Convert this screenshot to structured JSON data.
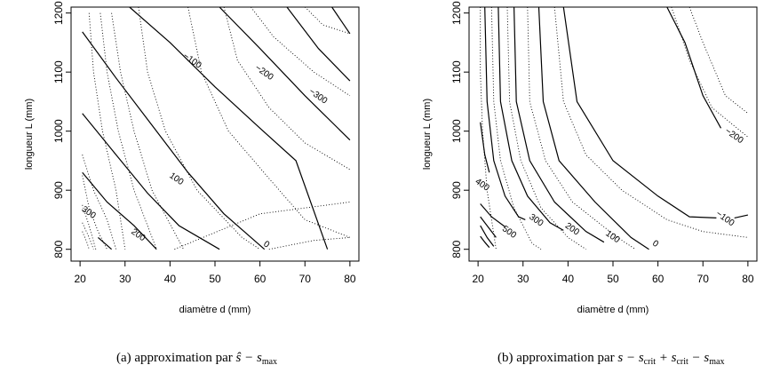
{
  "chart_data": [
    {
      "type": "contour",
      "caption": {
        "prefix": "(a)  approximation par ",
        "formula": "ŝ − s",
        "formula_sub": "max"
      },
      "xlabel": "diamètre d (mm)",
      "ylabel": "longueur L (mm)",
      "xlim": [
        18,
        82
      ],
      "ylim": [
        780,
        1210
      ],
      "x_ticks": [
        20,
        30,
        40,
        50,
        60,
        70,
        80
      ],
      "y_ticks": [
        800,
        900,
        1000,
        1100,
        1200
      ],
      "solid_lines": [
        {
          "points": [
            [
              20.5,
              1168
            ],
            [
              28,
              1090
            ],
            [
              36,
              1010
            ],
            [
              44,
              930
            ],
            [
              52,
              860
            ],
            [
              61,
              800
            ]
          ],
          "label": "0",
          "label_at": [
            61.5,
            809
          ]
        },
        {
          "points": [
            [
              20.5,
              1030
            ],
            [
              28,
              960
            ],
            [
              35,
              895
            ],
            [
              42,
              840
            ],
            [
              51,
              800
            ]
          ],
          "label": "100",
          "label_at": [
            41.5,
            920
          ]
        },
        {
          "points": [
            [
              20.5,
              930
            ],
            [
              26,
              880
            ],
            [
              32,
              840
            ],
            [
              37,
              800
            ]
          ],
          "label": "200",
          "label_at": [
            33,
            825
          ]
        },
        {
          "points": [
            [
              24,
              820
            ],
            [
              27,
              800
            ]
          ],
          "label": "300",
          "label_at": [
            22,
            863
          ]
        },
        {
          "points": [
            [
              31,
              1210
            ],
            [
              40,
              1150
            ],
            [
              50,
              1075
            ],
            [
              60,
              1005
            ],
            [
              68,
              950
            ],
            [
              75,
              800
            ]
          ],
          "label": "−100",
          "label_at": [
            45,
            1120
          ]
        },
        {
          "points": [
            [
              51,
              1210
            ],
            [
              60,
              1140
            ],
            [
              70,
              1060
            ],
            [
              80,
              985
            ]
          ],
          "label": "−200",
          "label_at": [
            61,
            1100
          ]
        },
        {
          "points": [
            [
              66,
              1210
            ],
            [
              73,
              1140
            ],
            [
              80,
              1085
            ]
          ],
          "label": "−300",
          "label_at": [
            73,
            1060
          ]
        },
        {
          "points": [
            [
              76,
              1210
            ],
            [
              80,
              1165
            ]
          ]
        }
      ],
      "dotted_lines": [
        [
          [
            22,
            1200
          ],
          [
            23,
            1100
          ],
          [
            25,
            1000
          ],
          [
            28,
            900
          ],
          [
            30,
            800
          ]
        ],
        [
          [
            24.5,
            1200
          ],
          [
            26,
            1100
          ],
          [
            28.5,
            1000
          ],
          [
            32,
            900
          ],
          [
            37,
            800
          ]
        ],
        [
          [
            27,
            1200
          ],
          [
            29,
            1100
          ],
          [
            32,
            1000
          ],
          [
            36,
            900
          ],
          [
            43,
            800
          ]
        ],
        [
          [
            20.5,
            960
          ],
          [
            23,
            900
          ],
          [
            26,
            850
          ],
          [
            28,
            800
          ]
        ],
        [
          [
            20.5,
            925
          ],
          [
            22,
            870
          ],
          [
            24,
            830
          ],
          [
            26,
            800
          ]
        ],
        [
          [
            20.5,
            875
          ],
          [
            22,
            840
          ],
          [
            23.5,
            800
          ]
        ],
        [
          [
            20.5,
            845
          ],
          [
            22,
            820
          ],
          [
            23,
            800
          ]
        ],
        [
          [
            20.5,
            830
          ],
          [
            21.5,
            812
          ],
          [
            22,
            800
          ]
        ],
        [
          [
            33,
            1210
          ],
          [
            35,
            1100
          ],
          [
            39,
            1000
          ],
          [
            46,
            900
          ],
          [
            56,
            820
          ],
          [
            60,
            800
          ]
        ],
        [
          [
            44,
            1210
          ],
          [
            47,
            1100
          ],
          [
            53,
            1000
          ],
          [
            62,
            920
          ],
          [
            70,
            850
          ],
          [
            80,
            820
          ]
        ],
        [
          [
            52,
            1210
          ],
          [
            55,
            1120
          ],
          [
            62,
            1040
          ],
          [
            70,
            980
          ],
          [
            80,
            935
          ]
        ],
        [
          [
            58,
            1210
          ],
          [
            63,
            1160
          ],
          [
            72,
            1100
          ],
          [
            80,
            1060
          ]
        ],
        [
          [
            70,
            1210
          ],
          [
            74,
            1180
          ],
          [
            80,
            1165
          ]
        ],
        [
          [
            41,
            800
          ],
          [
            60,
            860
          ],
          [
            80,
            880
          ]
        ],
        [
          [
            62,
            800
          ],
          [
            72,
            815
          ],
          [
            80,
            820
          ]
        ]
      ]
    },
    {
      "type": "contour",
      "caption": {
        "prefix": "(b)  approximation par ",
        "formula": "s − s",
        "formula_sub": "crit",
        "formula2": " + s",
        "formula2_sub": "crit",
        "formula3": " − s",
        "formula3_sub": "max"
      },
      "xlabel": "diamètre d (mm)",
      "ylabel": "longueur L (mm)",
      "xlim": [
        18,
        82
      ],
      "ylim": [
        780,
        1210
      ],
      "x_ticks": [
        20,
        30,
        40,
        50,
        60,
        70,
        80
      ],
      "y_ticks": [
        800,
        900,
        1000,
        1100,
        1200
      ],
      "solid_lines": [
        {
          "points": [
            [
              62,
              1210
            ],
            [
              66,
              1150
            ],
            [
              70,
              1060
            ],
            [
              74,
              1005
            ]
          ],
          "label": "−200",
          "label_at": [
            77,
            993
          ]
        },
        {
          "points": [
            [
              39,
              1210
            ],
            [
              42,
              1050
            ],
            [
              50,
              950
            ],
            [
              60,
              890
            ],
            [
              67,
              855
            ],
            [
              73,
              853
            ]
          ],
          "label": "−100",
          "label_at": [
            75,
            853
          ]
        },
        {
          "points": [
            [
              80,
              858
            ],
            [
              77,
              853
            ]
          ]
        },
        {
          "points": [
            [
              33.5,
              1210
            ],
            [
              34.5,
              1050
            ],
            [
              38,
              950
            ],
            [
              46,
              880
            ],
            [
              54,
              820
            ],
            [
              58,
              800
            ]
          ],
          "label": "0",
          "label_at": [
            59.5,
            810
          ]
        },
        {
          "points": [
            [
              28,
              1210
            ],
            [
              28.5,
              1050
            ],
            [
              31.5,
              950
            ],
            [
              37,
              880
            ],
            [
              44,
              830
            ],
            [
              48,
              812
            ]
          ],
          "label": "100",
          "label_at": [
            50,
            822
          ]
        },
        {
          "points": [
            [
              24.5,
              1210
            ],
            [
              25,
              1050
            ],
            [
              27.5,
              950
            ],
            [
              31,
              890
            ],
            [
              36,
              845
            ],
            [
              39,
              832
            ]
          ],
          "label": "200",
          "label_at": [
            41,
            835
          ]
        },
        {
          "points": [
            [
              21.5,
              1210
            ],
            [
              22,
              1050
            ],
            [
              23.5,
              950
            ],
            [
              26,
              890
            ],
            [
              29,
              855
            ],
            [
              30.5,
              850
            ]
          ],
          "label": "300",
          "label_at": [
            33,
            850
          ]
        },
        {
          "points": [
            [
              20.5,
              1015
            ],
            [
              21.5,
              960
            ],
            [
              22.5,
              930
            ]
          ],
          "label": "400",
          "label_at": [
            21,
            910
          ]
        },
        {
          "points": [
            [
              20.5,
              877
            ],
            [
              23,
              855
            ],
            [
              26,
              838
            ]
          ],
          "label": "500",
          "label_at": [
            27,
            830
          ]
        },
        {
          "points": [
            [
              20.5,
              855
            ],
            [
              22.5,
              835
            ],
            [
              24,
              820
            ]
          ]
        },
        {
          "points": [
            [
              20.5,
              840
            ],
            [
              22,
              820
            ],
            [
              23.5,
              805
            ]
          ]
        },
        {
          "points": [
            [
              20.5,
              822
            ],
            [
              21.5,
              812
            ],
            [
              22.5,
              803
            ]
          ]
        }
      ],
      "dotted_lines": [
        [
          [
            20.5,
            1210
          ],
          [
            20.5,
            1100
          ],
          [
            21,
            1000
          ],
          [
            22,
            900
          ],
          [
            24,
            800
          ]
        ],
        [
          [
            23,
            1210
          ],
          [
            23.5,
            1050
          ],
          [
            25,
            950
          ],
          [
            28,
            870
          ],
          [
            32,
            810
          ],
          [
            34,
            800
          ]
        ],
        [
          [
            26.5,
            1210
          ],
          [
            27,
            1050
          ],
          [
            29.5,
            950
          ],
          [
            34,
            870
          ],
          [
            40,
            820
          ],
          [
            44,
            800
          ]
        ],
        [
          [
            31,
            1210
          ],
          [
            31.5,
            1050
          ],
          [
            35,
            950
          ],
          [
            41,
            880
          ],
          [
            51,
            820
          ],
          [
            55,
            800
          ]
        ],
        [
          [
            37,
            1210
          ],
          [
            39,
            1050
          ],
          [
            44,
            960
          ],
          [
            52,
            900
          ],
          [
            62,
            850
          ],
          [
            70,
            830
          ],
          [
            80,
            820
          ]
        ],
        [
          [
            63,
            1210
          ],
          [
            67,
            1120
          ],
          [
            72,
            1040
          ],
          [
            80,
            990
          ]
        ],
        [
          [
            67,
            1210
          ],
          [
            70,
            1150
          ],
          [
            75,
            1060
          ],
          [
            80,
            1030
          ]
        ]
      ]
    }
  ]
}
